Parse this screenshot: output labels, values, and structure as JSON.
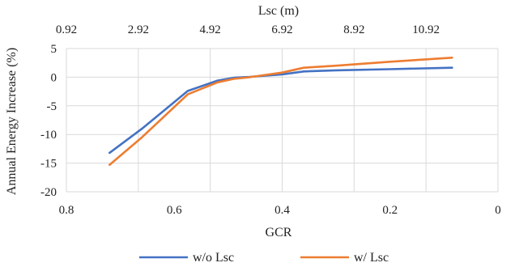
{
  "chart_data": {
    "type": "line",
    "title": "",
    "xlabel": "GCR",
    "x2label": "Lsc (m)",
    "ylabel": "Annual Energy Increase (%)",
    "xlim": [
      0.8,
      0
    ],
    "x_reversed": true,
    "x2lim": [
      0.92,
      12.92
    ],
    "ylim": [
      -20,
      5
    ],
    "x_ticks": [
      "0.8",
      "0.6",
      "0.4",
      "0.2",
      "0"
    ],
    "x_tick_values": [
      0.8,
      0.6,
      0.4,
      0.2,
      0
    ],
    "x2_ticks": [
      "0.92",
      "2.92",
      "4.92",
      "6.92",
      "8.92",
      "10.92"
    ],
    "x2_tick_values": [
      0.92,
      2.92,
      4.92,
      6.92,
      8.92,
      10.92
    ],
    "y_ticks": [
      "5",
      "0",
      "-5",
      "-10",
      "-15",
      "-20"
    ],
    "y_tick_values": [
      5,
      0,
      -5,
      -10,
      -15,
      -20
    ],
    "grid": true,
    "legend_position": "bottom",
    "series": [
      {
        "name": "w/o Lsc",
        "color": "#4472c4",
        "x": [
          0.72,
          0.66,
          0.575,
          0.52,
          0.49,
          0.46,
          0.4,
          0.36,
          0.3,
          0.2,
          0.085
        ],
        "y": [
          -13.2,
          -9.0,
          -2.4,
          -0.6,
          -0.1,
          0.05,
          0.5,
          1.0,
          1.2,
          1.4,
          1.65
        ]
      },
      {
        "name": "w/ Lsc",
        "color": "#ed7d31",
        "x": [
          0.72,
          0.66,
          0.575,
          0.52,
          0.49,
          0.46,
          0.4,
          0.36,
          0.3,
          0.2,
          0.085
        ],
        "y": [
          -15.3,
          -10.5,
          -3.0,
          -0.9,
          -0.3,
          0.0,
          0.8,
          1.65,
          2.0,
          2.7,
          3.4
        ]
      }
    ]
  }
}
